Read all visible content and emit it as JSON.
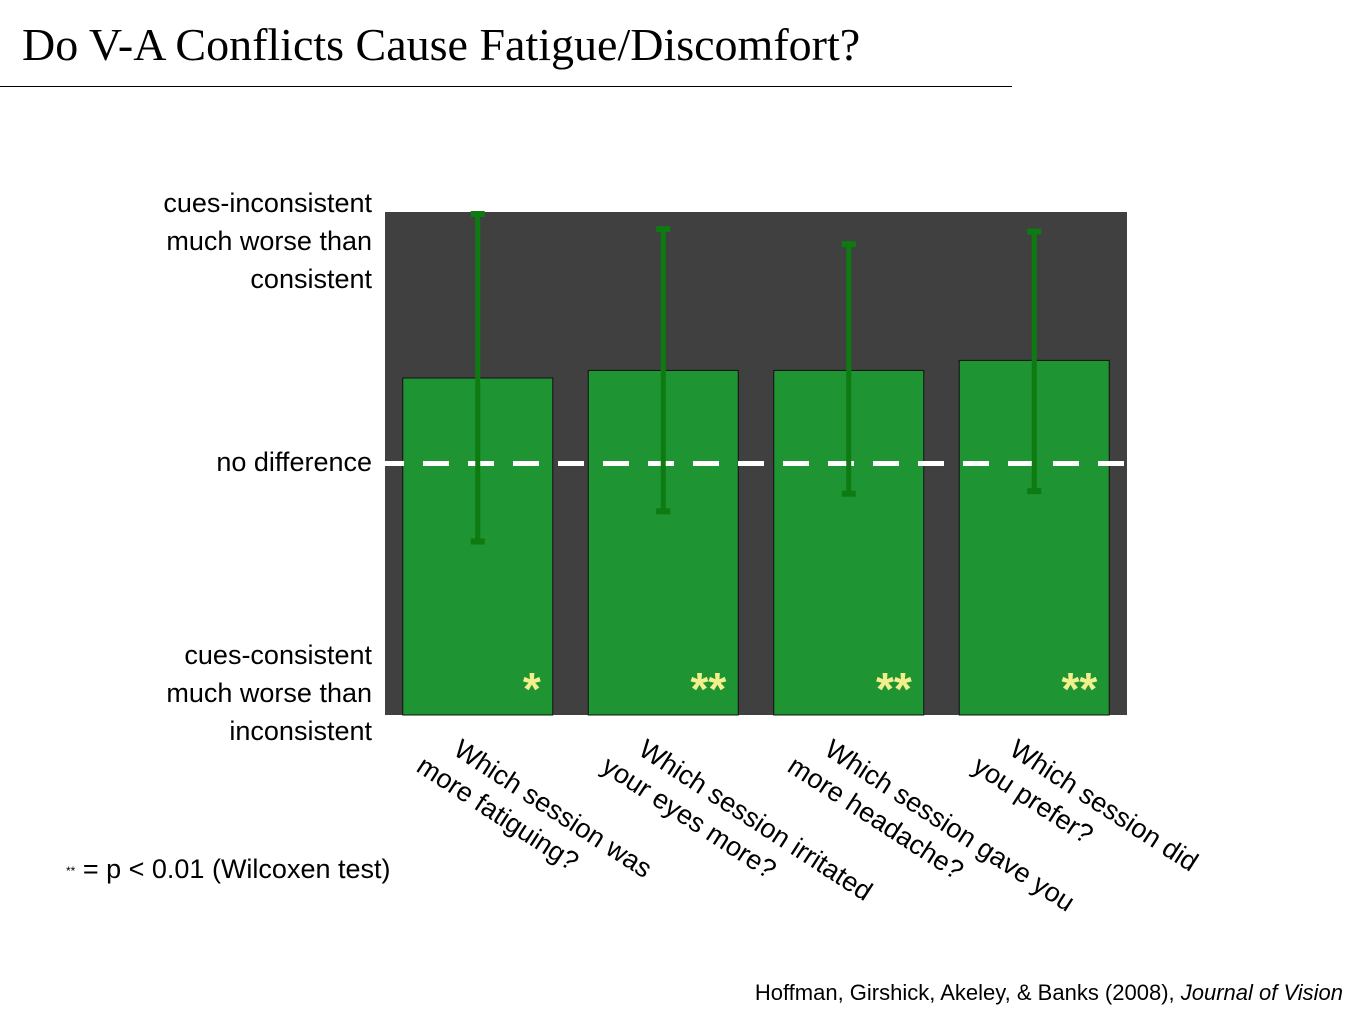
{
  "title": "Do V-A Conflicts Cause Fatigue/Discomfort?",
  "footnote": {
    "mark": "**",
    "text": " = p < 0.01 (Wilcoxen test)"
  },
  "citation": {
    "authors": "Hoffman, Girshick, Akeley, & Banks (2008), ",
    "journal": "Journal of Vision"
  },
  "colors": {
    "plot_background": "#404040",
    "bar_fill": "#1e9433",
    "error_bar": "#0d7a12",
    "reference_line": "#ffffff",
    "significance_marks": "#f2f08c"
  },
  "chart_data": {
    "type": "bar",
    "ylim": [
      -1,
      1
    ],
    "ytick_labels": [
      {
        "value": 1,
        "lines": [
          "cues-inconsistent",
          "much worse than",
          "consistent"
        ]
      },
      {
        "value": 0,
        "lines": [
          "no difference"
        ]
      },
      {
        "value": -1,
        "lines": [
          "cues-consistent",
          "much worse than",
          "inconsistent"
        ]
      }
    ],
    "reference_line": {
      "value": 0,
      "style": "dashed"
    },
    "categories": [
      [
        "Which session was",
        "more fatiguing?"
      ],
      [
        "Which session irritated",
        "your eyes more?"
      ],
      [
        "Which session gave you",
        "more headache?"
      ],
      [
        "Which session did",
        "you prefer?"
      ]
    ],
    "values": [
      0.34,
      0.37,
      0.37,
      0.41
    ],
    "error_low": [
      -0.31,
      -0.19,
      -0.12,
      -0.11
    ],
    "error_high": [
      1.0,
      0.94,
      0.88,
      0.93
    ],
    "significance": [
      "*",
      "**",
      "**",
      "**"
    ],
    "grid": false,
    "legend": "none"
  }
}
